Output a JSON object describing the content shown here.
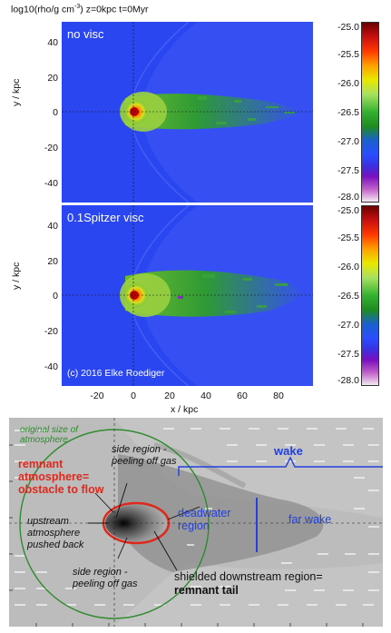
{
  "title": {
    "main": "log10(rho/g cm",
    "sup": "-3",
    "rest": ")  z=0kpc  t=0Myr"
  },
  "panels": [
    {
      "label": "no visc",
      "copyright": ""
    },
    {
      "label": "0.1Spitzer visc",
      "copyright": "(c) 2016 Elke Roediger"
    }
  ],
  "y_axis": {
    "label": "y / kpc",
    "ticks": [
      "40",
      "20",
      "0",
      "-20",
      "-40"
    ]
  },
  "x_axis": {
    "label": "x / kpc",
    "ticks": [
      "-20",
      "0",
      "20",
      "40",
      "60",
      "80"
    ]
  },
  "colorbar": {
    "ticks": [
      "-25.0",
      "-25.5",
      "-26.0",
      "-26.5",
      "-27.0",
      "-27.5",
      "-28.0"
    ]
  },
  "diagram": {
    "original_size": "original size of\natmosphere",
    "remnant_atmosphere": "remnant\natmosphere=\nobstacle to flow",
    "side_region_top": "side region -\npeeling off gas",
    "wake": "wake",
    "upstream": "upstream\natmosphere\npushed back",
    "deadwater": "deadwater\nregion",
    "far_wake": "far wake",
    "side_region_bottom": "side region -\npeeling off gas",
    "shielded_1": "shielded downstream region=",
    "shielded_2": "remnant tail"
  },
  "colors": {
    "background_blue": "#2a46f0",
    "remnant_red": "#e0281c",
    "atmosphere_green": "#2e8b2e",
    "wake_blue": "#2040e0"
  }
}
